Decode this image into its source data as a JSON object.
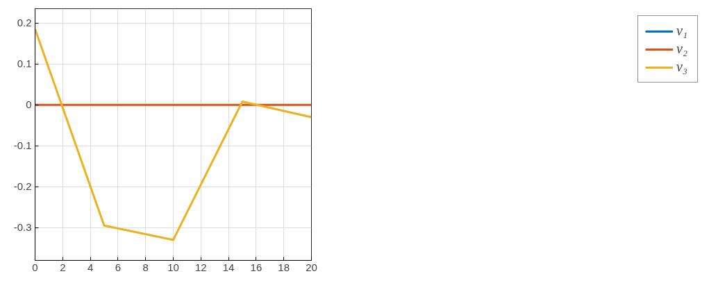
{
  "chart_data": {
    "type": "line",
    "x": [
      0,
      5,
      10,
      15,
      20
    ],
    "series": [
      {
        "name": "v₁",
        "color": "#0072bd",
        "values": [
          null,
          null,
          null,
          null,
          null
        ]
      },
      {
        "name": "v₂",
        "color": "#d95319",
        "values": [
          0,
          0,
          0,
          0,
          0
        ]
      },
      {
        "name": "v₃",
        "color": "#edb120",
        "values": [
          0.185,
          -0.295,
          -0.33,
          0.008,
          -0.03
        ]
      }
    ],
    "xlim": [
      0,
      20
    ],
    "ylim": [
      -0.38,
      0.235
    ],
    "xticks": [
      0,
      2,
      4,
      6,
      8,
      10,
      12,
      14,
      16,
      18,
      20
    ],
    "yticks": [
      {
        "value": -0.3,
        "label": "-0.3"
      },
      {
        "value": -0.2,
        "label": "-0.2"
      },
      {
        "value": -0.1,
        "label": "-0.1"
      },
      0,
      {
        "value": 0.1,
        "label": "0.1"
      },
      {
        "value": 0.2,
        "label": "0.2"
      }
    ],
    "grid": true,
    "legend": "top right",
    "line_style": "solid",
    "marker": "none"
  }
}
